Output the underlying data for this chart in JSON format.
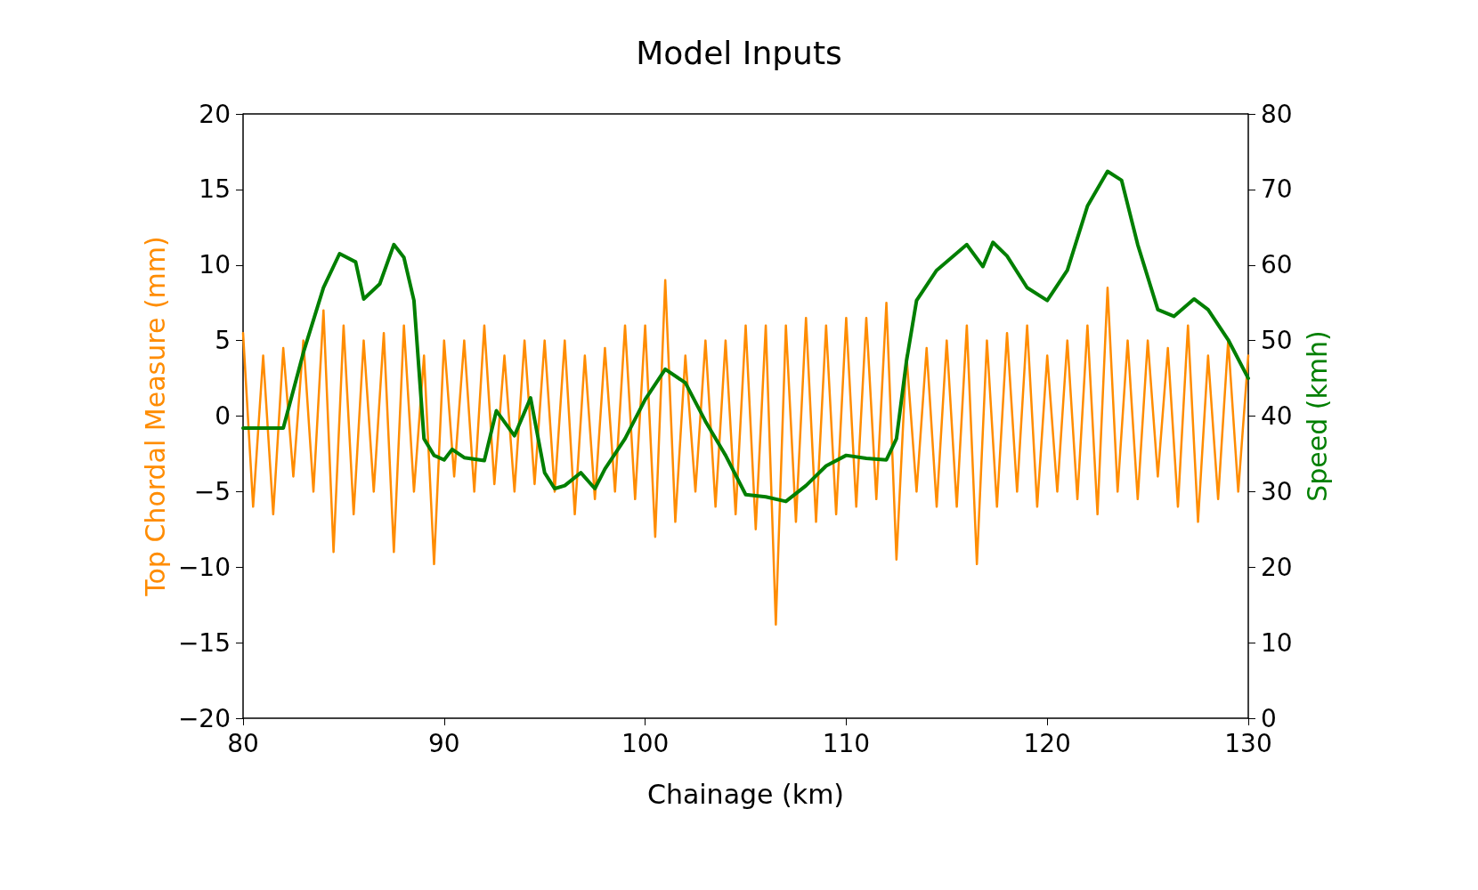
{
  "chart_data": {
    "type": "line",
    "title": "Model Inputs",
    "xlabel": "Chainage (km)",
    "ylabel": "Top Chordal Measure (mm)",
    "y2label": "Speed (kmh)",
    "xlim": [
      80,
      130
    ],
    "xticks": [
      80,
      90,
      100,
      110,
      120,
      130
    ],
    "ylim": [
      -20,
      20
    ],
    "yticks": [
      -20,
      -15,
      -10,
      -5,
      0,
      5,
      10,
      15,
      20
    ],
    "y2lim": [
      0,
      80
    ],
    "y2ticks": [
      0,
      10,
      20,
      30,
      40,
      50,
      60,
      70,
      80
    ],
    "grid": false,
    "marker": "none",
    "line_style": "solid",
    "series": [
      {
        "color": "#ff8c00",
        "x": [
          80,
          80.5,
          81,
          81.5,
          82,
          82.5,
          83,
          83.5,
          84,
          84.5,
          85,
          85.5,
          86,
          86.5,
          87,
          87.5,
          88,
          88.5,
          89,
          89.5,
          90,
          90.5,
          91,
          91.5,
          92,
          92.5,
          93,
          93.5,
          94,
          94.5,
          95,
          95.5,
          96,
          96.5,
          97,
          97.5,
          98,
          98.5,
          99,
          99.5,
          100,
          100.5,
          101,
          101.5,
          102,
          102.5,
          103,
          103.5,
          104,
          104.5,
          105,
          105.5,
          106,
          106.5,
          107,
          107.5,
          108,
          108.5,
          109,
          109.5,
          110,
          110.5,
          111,
          111.5,
          112,
          112.5,
          113,
          113.5,
          114,
          114.5,
          115,
          115.5,
          116,
          116.5,
          117,
          117.5,
          118,
          118.5,
          119,
          119.5,
          120,
          120.5,
          121,
          121.5,
          122,
          122.5,
          123,
          123.5,
          124,
          124.5,
          125,
          125.5,
          126,
          126.5,
          127,
          127.5,
          128,
          128.5,
          129,
          129.5,
          130
        ],
        "values": [
          5.5,
          -6,
          4,
          -6.5,
          4.5,
          -4,
          5,
          -5,
          7,
          -9,
          6,
          -6.5,
          5,
          -5,
          5.5,
          -9,
          6,
          -5,
          4,
          -9.8,
          5,
          -4,
          5,
          -5,
          6,
          -4.5,
          4,
          -5,
          5,
          -4.5,
          5,
          -5,
          5,
          -6.5,
          4,
          -5.5,
          4.5,
          -5,
          6,
          -5.5,
          6,
          -8,
          9,
          -7,
          4,
          -5,
          5,
          -6,
          5,
          -6.5,
          6,
          -7.5,
          6,
          -13.8,
          6,
          -7,
          6.5,
          -7,
          6,
          -6.5,
          6.5,
          -6,
          6.5,
          -5.5,
          7.5,
          -9.5,
          4,
          -5,
          4.5,
          -6,
          5,
          -6,
          6,
          -9.8,
          5,
          -6,
          5.5,
          -5,
          6,
          -6,
          4,
          -5,
          5,
          -5.5,
          6,
          -6.5,
          8.5,
          -5,
          5,
          -5.5,
          5,
          -4,
          4.5,
          -6,
          6,
          -7,
          4,
          -5.5,
          5,
          -5,
          4
        ]
      },
      {
        "color": "#007f00",
        "axis": "y2",
        "x": [
          80,
          82,
          83,
          84,
          84.8,
          85.6,
          86,
          86.8,
          87.5,
          88,
          88.5,
          89,
          89.5,
          90,
          90.4,
          91,
          92,
          92.6,
          93.5,
          94.3,
          95,
          95.5,
          96,
          96.8,
          97.5,
          98,
          99,
          100,
          101,
          102,
          103,
          104,
          105,
          106,
          107,
          108,
          109,
          110,
          111,
          112,
          112.5,
          113,
          113.5,
          114.5,
          116,
          116.8,
          117.3,
          118,
          119,
          120,
          121,
          122,
          123,
          123.7,
          124.5,
          125.5,
          126.3,
          127.3,
          128,
          129,
          130
        ],
        "values": [
          38.4,
          38.4,
          48.4,
          57,
          61.5,
          60.4,
          55.5,
          57.5,
          62.7,
          61,
          55.3,
          37,
          34.8,
          34.2,
          35.6,
          34.5,
          34.1,
          40.7,
          37.4,
          42.4,
          32.5,
          30.4,
          30.8,
          32.5,
          30.4,
          33,
          37,
          42.2,
          46.2,
          44.4,
          39.3,
          34.8,
          29.6,
          29.3,
          28.7,
          30.8,
          33.4,
          34.8,
          34.4,
          34.2,
          37,
          47.3,
          55.3,
          59.3,
          62.7,
          59.8,
          63,
          61.2,
          57,
          55.3,
          59.3,
          67.8,
          72.4,
          71.2,
          62.7,
          54.1,
          53.2,
          55.5,
          54.1,
          50.1,
          45
        ]
      }
    ]
  }
}
